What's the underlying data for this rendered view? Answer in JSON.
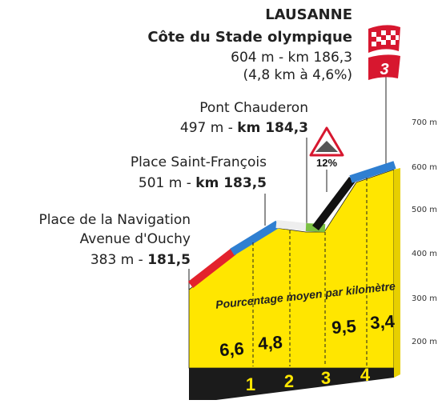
{
  "header": {
    "place": "LAUSANNE",
    "climb": "Côte du Stade olympique",
    "stats": "604 m - km 186,3",
    "detail": "(4,8 km à 4,6%)",
    "category": "3"
  },
  "waypoints": [
    {
      "name": "Pont Chauderon",
      "altitude": "497 m - ",
      "km": "km 184,3"
    },
    {
      "name": "Place Saint-François",
      "altitude": "501 m - ",
      "km": "km 183,5"
    },
    {
      "name": "Place de la Navigation",
      "name2": "Avenue d'Ouchy",
      "altitude": "383 m - ",
      "km": "181,5"
    }
  ],
  "steepest": "12%",
  "gradient_label": "Pourcentage moyen par kilomètre",
  "gradients": [
    "6,6",
    "4,8",
    "9,5",
    "3,4"
  ],
  "kilometers": [
    "1",
    "2",
    "3",
    "4"
  ],
  "elevation_labels": [
    "700 m",
    "600 m",
    "500 m",
    "400 m",
    "300 m",
    "200 m"
  ]
}
